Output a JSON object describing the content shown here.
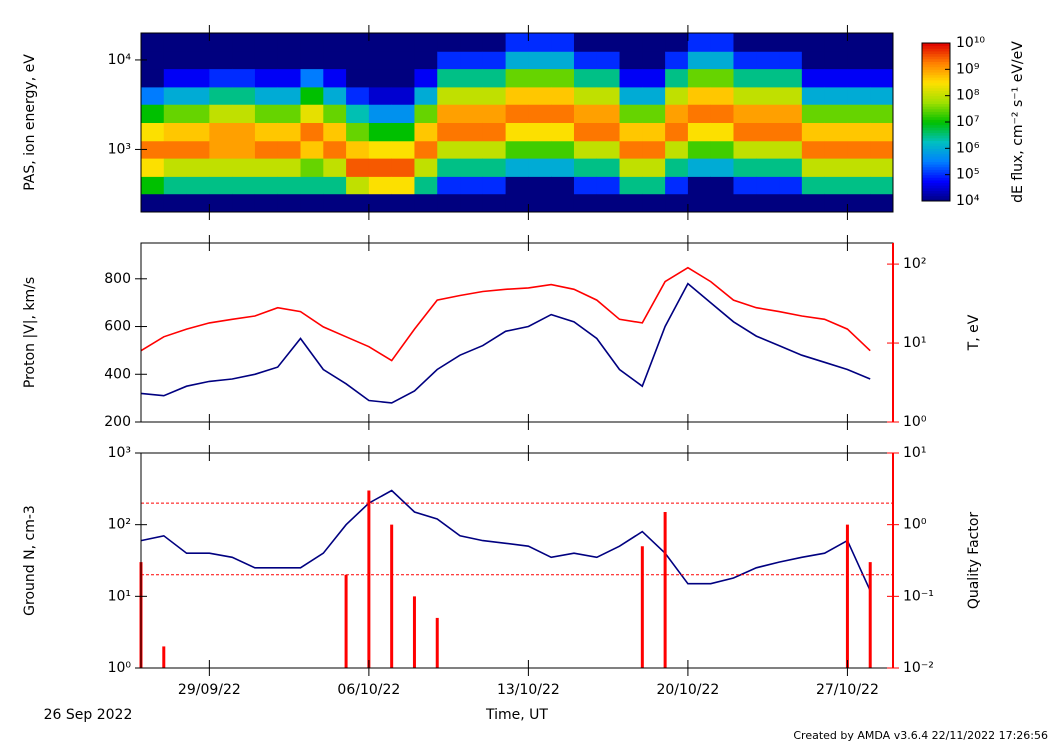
{
  "time_axis": {
    "label": "Time, UT",
    "start_label": "26 Sep 2022",
    "xlim": [
      "2022-09-26",
      "2022-10-29"
    ],
    "xticks": [
      {
        "value": "2022-09-29",
        "label": "29/09/22"
      },
      {
        "value": "2022-10-06",
        "label": "06/10/22"
      },
      {
        "value": "2022-10-13",
        "label": "13/10/22"
      },
      {
        "value": "2022-10-20",
        "label": "20/10/22"
      },
      {
        "value": "2022-10-27",
        "label": "27/10/22"
      }
    ],
    "x": [
      "2022-09-26",
      "2022-09-27",
      "2022-09-28",
      "2022-09-29",
      "2022-09-30",
      "2022-10-01",
      "2022-10-02",
      "2022-10-03",
      "2022-10-04",
      "2022-10-05",
      "2022-10-06",
      "2022-10-07",
      "2022-10-08",
      "2022-10-09",
      "2022-10-10",
      "2022-10-11",
      "2022-10-12",
      "2022-10-13",
      "2022-10-14",
      "2022-10-15",
      "2022-10-16",
      "2022-10-17",
      "2022-10-18",
      "2022-10-19",
      "2022-10-20",
      "2022-10-21",
      "2022-10-22",
      "2022-10-23",
      "2022-10-24",
      "2022-10-25",
      "2022-10-26",
      "2022-10-27",
      "2022-10-28"
    ]
  },
  "credit": "Created by AMDA v3.6.4 22/11/2022 17:26:56",
  "chart_data": [
    {
      "type": "heatmap",
      "ylabel": "PAS, ion energy, eV",
      "ylog": true,
      "ylim": [
        200,
        20000
      ],
      "yticks": [
        {
          "value": 1000,
          "label": "10³"
        },
        {
          "value": 10000,
          "label": "10⁴"
        }
      ],
      "ybins": [
        200,
        320,
        500,
        800,
        1250,
        2000,
        3200,
        5000,
        8000,
        12500,
        20000
      ],
      "zlabel": "dE flux, cm⁻² s⁻¹ eV/eV",
      "zlog": true,
      "zlim": [
        10000,
        10000000000
      ],
      "zticks": [
        {
          "value": 10000,
          "label": "10⁴"
        },
        {
          "value": 100000,
          "label": "10⁵"
        },
        {
          "value": 1000000,
          "label": "10⁶"
        },
        {
          "value": 10000000,
          "label": "10⁷"
        },
        {
          "value": 100000000,
          "label": "10⁸"
        },
        {
          "value": 1000000000,
          "label": "10⁹"
        },
        {
          "value": 10000000000,
          "label": "10¹⁰"
        }
      ],
      "colormap": [
        "#00007f",
        "#0000ff",
        "#0080ff",
        "#00c0c0",
        "#00c000",
        "#a0e000",
        "#ffe000",
        "#ff8000",
        "#e00000"
      ],
      "values": [
        [
          10000.0,
          10000000.0,
          300000000.0,
          2000000000.0,
          300000000.0,
          10000000.0,
          300000.0,
          10000.0,
          10000.0,
          10000.0
        ],
        [
          10000.0,
          3000000.0,
          100000000.0,
          2000000000.0,
          500000000.0,
          30000000.0,
          1000000.0,
          50000.0,
          10000.0,
          10000.0
        ],
        [
          10000.0,
          3000000.0,
          100000000.0,
          2000000000.0,
          500000000.0,
          30000000.0,
          1000000.0,
          50000.0,
          10000.0,
          10000.0
        ],
        [
          10000.0,
          3000000.0,
          100000000.0,
          1000000000.0,
          1000000000.0,
          100000000.0,
          3000000.0,
          100000.0,
          10000.0,
          10000.0
        ],
        [
          10000.0,
          3000000.0,
          100000000.0,
          1000000000.0,
          1000000000.0,
          100000000.0,
          3000000.0,
          100000.0,
          10000.0,
          10000.0
        ],
        [
          10000.0,
          3000000.0,
          100000000.0,
          2000000000.0,
          500000000.0,
          30000000.0,
          1000000.0,
          50000.0,
          10000.0,
          10000.0
        ],
        [
          10000.0,
          3000000.0,
          100000000.0,
          2000000000.0,
          500000000.0,
          30000000.0,
          1000000.0,
          50000.0,
          10000.0,
          10000.0
        ],
        [
          10000.0,
          3000000.0,
          30000000.0,
          500000000.0,
          2000000000.0,
          200000000.0,
          10000000.0,
          300000.0,
          10000.0,
          10000.0
        ],
        [
          10000.0,
          3000000.0,
          100000000.0,
          2000000000.0,
          500000000.0,
          30000000.0,
          1000000.0,
          50000.0,
          10000.0,
          10000.0
        ],
        [
          10000.0,
          100000000.0,
          3000000000.0,
          500000000.0,
          30000000.0,
          2000000.0,
          100000.0,
          10000.0,
          10000.0,
          10000.0
        ],
        [
          10000.0,
          300000000.0,
          3000000000.0,
          300000000.0,
          10000000.0,
          500000.0,
          30000.0,
          10000.0,
          10000.0,
          10000.0
        ],
        [
          10000.0,
          300000000.0,
          3000000000.0,
          300000000.0,
          10000000.0,
          500000.0,
          30000.0,
          10000.0,
          10000.0,
          10000.0
        ],
        [
          10000.0,
          3000000.0,
          100000000.0,
          2000000000.0,
          500000000.0,
          30000000.0,
          1000000.0,
          50000.0,
          10000.0,
          10000.0
        ],
        [
          10000.0,
          100000.0,
          3000000.0,
          100000000.0,
          2000000000.0,
          1000000000.0,
          100000000.0,
          3000000.0,
          100000.0,
          10000.0
        ],
        [
          10000.0,
          100000.0,
          3000000.0,
          100000000.0,
          2000000000.0,
          1000000000.0,
          100000000.0,
          3000000.0,
          100000.0,
          10000.0
        ],
        [
          10000.0,
          100000.0,
          3000000.0,
          100000000.0,
          2000000000.0,
          1000000000.0,
          100000000.0,
          3000000.0,
          100000.0,
          10000.0
        ],
        [
          10000.0,
          10000.0,
          1000000.0,
          20000000.0,
          300000000.0,
          2000000000.0,
          500000000.0,
          30000000.0,
          1000000.0,
          100000.0
        ],
        [
          10000.0,
          10000.0,
          1000000.0,
          20000000.0,
          300000000.0,
          2000000000.0,
          500000000.0,
          30000000.0,
          1000000.0,
          100000.0
        ],
        [
          10000.0,
          10000.0,
          1000000.0,
          20000000.0,
          300000000.0,
          2000000000.0,
          500000000.0,
          30000000.0,
          1000000.0,
          100000.0
        ],
        [
          10000.0,
          100000.0,
          3000000.0,
          100000000.0,
          2000000000.0,
          1000000000.0,
          100000000.0,
          3000000.0,
          100000.0,
          10000.0
        ],
        [
          10000.0,
          100000.0,
          3000000.0,
          100000000.0,
          2000000000.0,
          1000000000.0,
          100000000.0,
          3000000.0,
          100000.0,
          10000.0
        ],
        [
          10000.0,
          3000000.0,
          100000000.0,
          2000000000.0,
          500000000.0,
          30000000.0,
          1000000.0,
          50000.0,
          10000.0,
          10000.0
        ],
        [
          10000.0,
          3000000.0,
          100000000.0,
          2000000000.0,
          500000000.0,
          30000000.0,
          1000000.0,
          50000.0,
          10000.0,
          10000.0
        ],
        [
          10000.0,
          100000.0,
          3000000.0,
          100000000.0,
          2000000000.0,
          1000000000.0,
          100000000.0,
          3000000.0,
          100000.0,
          10000.0
        ],
        [
          10000.0,
          10000.0,
          1000000.0,
          20000000.0,
          300000000.0,
          2000000000.0,
          500000000.0,
          30000000.0,
          1000000.0,
          100000.0
        ],
        [
          10000.0,
          10000.0,
          1000000.0,
          20000000.0,
          300000000.0,
          2000000000.0,
          500000000.0,
          30000000.0,
          1000000.0,
          100000.0
        ],
        [
          10000.0,
          100000.0,
          3000000.0,
          100000000.0,
          2000000000.0,
          1000000000.0,
          100000000.0,
          3000000.0,
          100000.0,
          10000.0
        ],
        [
          10000.0,
          100000.0,
          3000000.0,
          100000000.0,
          2000000000.0,
          1000000000.0,
          100000000.0,
          3000000.0,
          100000.0,
          10000.0
        ],
        [
          10000.0,
          100000.0,
          3000000.0,
          100000000.0,
          2000000000.0,
          1000000000.0,
          100000000.0,
          3000000.0,
          100000.0,
          10000.0
        ],
        [
          10000.0,
          3000000.0,
          100000000.0,
          2000000000.0,
          500000000.0,
          30000000.0,
          1000000.0,
          50000.0,
          10000.0,
          10000.0
        ],
        [
          10000.0,
          3000000.0,
          100000000.0,
          2000000000.0,
          500000000.0,
          30000000.0,
          1000000.0,
          50000.0,
          10000.0,
          10000.0
        ],
        [
          10000.0,
          3000000.0,
          100000000.0,
          2000000000.0,
          500000000.0,
          30000000.0,
          1000000.0,
          50000.0,
          10000.0,
          10000.0
        ],
        [
          10000.0,
          3000000.0,
          100000000.0,
          2000000000.0,
          500000000.0,
          30000000.0,
          1000000.0,
          50000.0,
          10000.0,
          10000.0
        ]
      ]
    },
    {
      "type": "line",
      "ylabel": "Proton |V|, km/s",
      "ycolor": "#000080",
      "ylim": [
        200,
        950
      ],
      "yticks": [
        200,
        400,
        600,
        800
      ],
      "y2label": "T, eV",
      "y2color": "#ff0000",
      "y2log": true,
      "y2lim": [
        1,
        185
      ],
      "y2ticks": [
        {
          "value": 1,
          "label": "10⁰"
        },
        {
          "value": 10,
          "label": "10¹"
        },
        {
          "value": 100,
          "label": "10²"
        }
      ],
      "series": [
        {
          "color": "#000080",
          "values": [
            320,
            310,
            350,
            370,
            380,
            400,
            430,
            550,
            420,
            360,
            290,
            280,
            330,
            420,
            480,
            520,
            580,
            600,
            650,
            620,
            550,
            420,
            350,
            600,
            780,
            700,
            620,
            560,
            520,
            480,
            450,
            420,
            380
          ]
        },
        {
          "color": "#ff0000",
          "axis": "y2",
          "values": [
            8,
            12,
            15,
            18,
            20,
            22,
            28,
            25,
            16,
            12,
            9,
            6,
            15,
            35,
            40,
            45,
            48,
            50,
            55,
            48,
            35,
            20,
            18,
            60,
            90,
            60,
            35,
            28,
            25,
            22,
            20,
            15,
            8
          ]
        }
      ]
    },
    {
      "type": "line",
      "ylabel": "Ground N, cm-3",
      "ycolor": "#000080",
      "ylog": true,
      "ylim": [
        1,
        1000
      ],
      "yticks": [
        {
          "value": 1,
          "label": "10⁰"
        },
        {
          "value": 10,
          "label": "10¹"
        },
        {
          "value": 100,
          "label": "10²"
        },
        {
          "value": 1000,
          "label": "10³"
        }
      ],
      "y2label": "Quality Factor",
      "y2color": "#ff0000",
      "y2log": true,
      "y2lim": [
        0.01,
        10
      ],
      "y2ticks": [
        {
          "value": 0.01,
          "label": "10⁻²"
        },
        {
          "value": 0.1,
          "label": "10⁻¹"
        },
        {
          "value": 1,
          "label": "10⁰"
        },
        {
          "value": 10,
          "label": "10¹"
        }
      ],
      "hlines": [
        0.2,
        2
      ],
      "series": [
        {
          "color": "#000080",
          "values": [
            60,
            70,
            40,
            40,
            35,
            25,
            25,
            25,
            40,
            100,
            200,
            300,
            150,
            120,
            70,
            60,
            55,
            50,
            35,
            40,
            35,
            50,
            80,
            40,
            15,
            15,
            18,
            25,
            30,
            35,
            40,
            60,
            12
          ]
        },
        {
          "color": "#ff0000",
          "axis": "y2",
          "style": "stem",
          "values": [
            0.3,
            0.02,
            null,
            null,
            null,
            null,
            null,
            null,
            null,
            0.2,
            3,
            1,
            0.1,
            0.05,
            null,
            null,
            null,
            null,
            null,
            null,
            null,
            null,
            0.5,
            1.5,
            null,
            null,
            null,
            null,
            null,
            null,
            null,
            1,
            0.3
          ]
        }
      ]
    }
  ]
}
